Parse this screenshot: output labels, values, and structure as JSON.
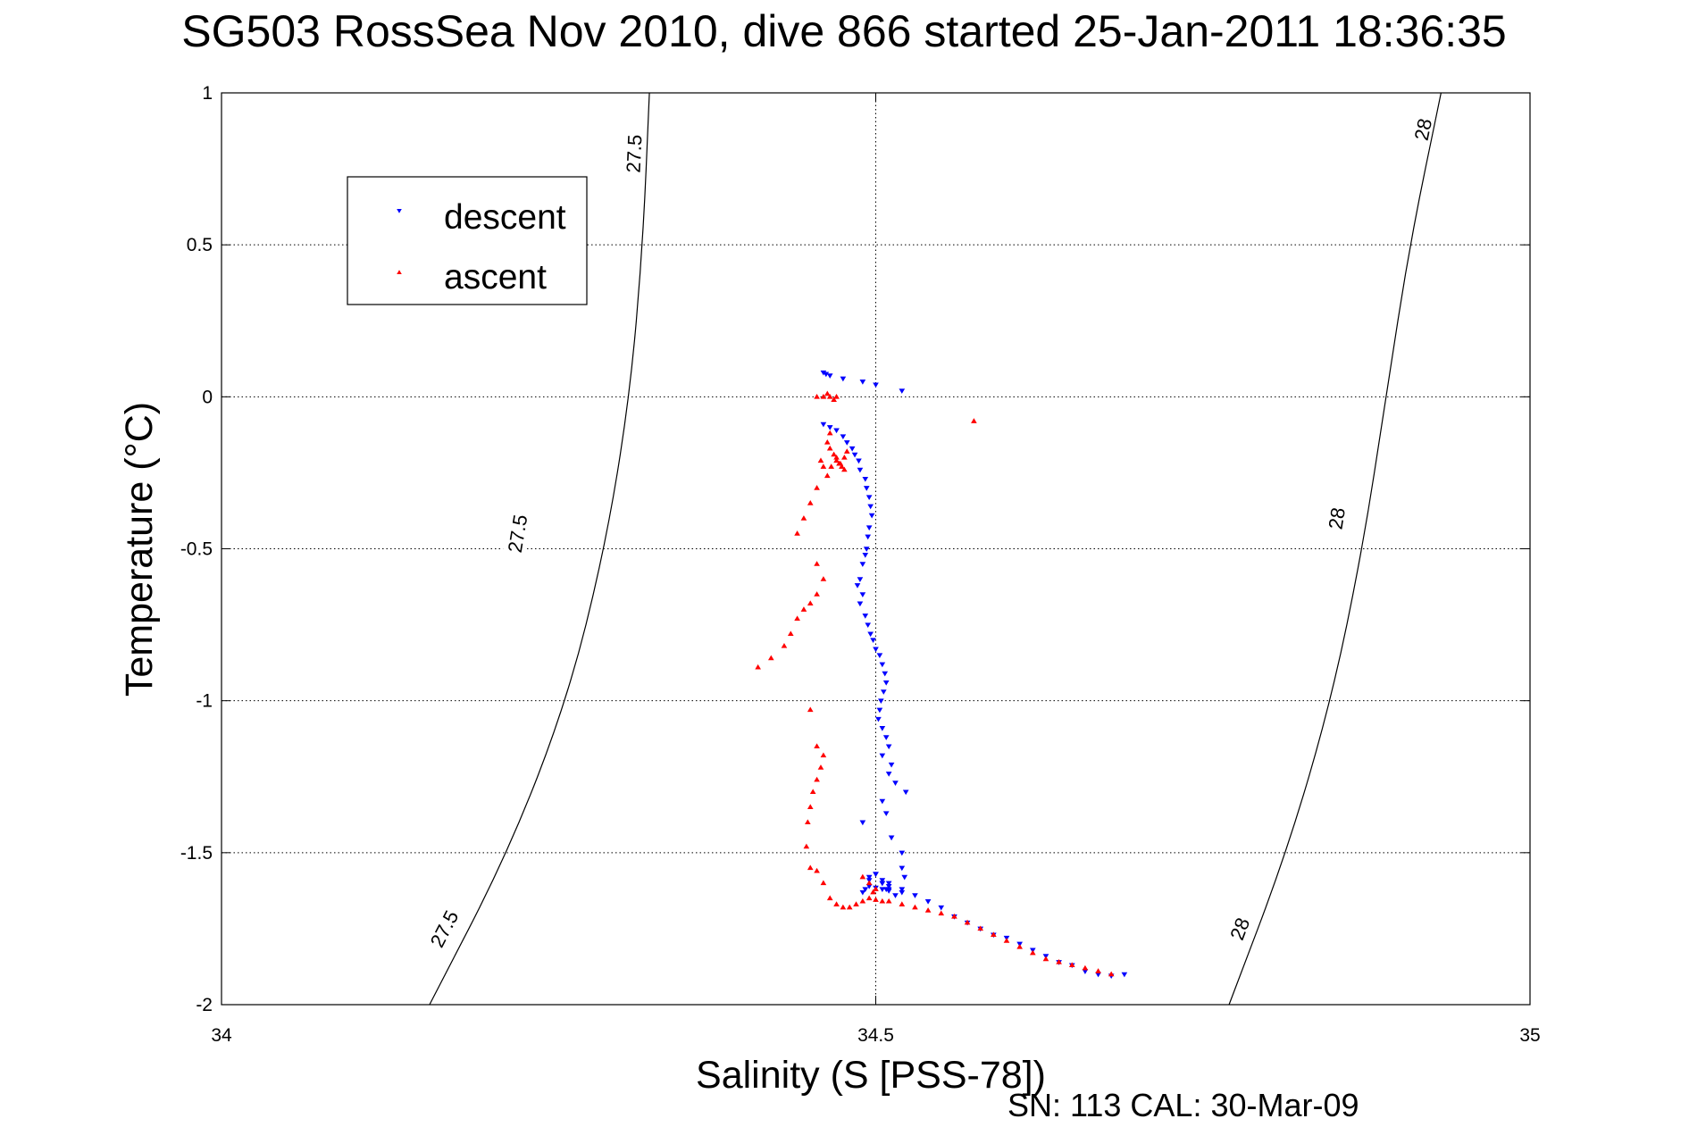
{
  "chart_data": {
    "type": "scatter",
    "title": "SG503 RossSea Nov 2010, dive 866 started 25-Jan-2011 18:36:35",
    "xlabel": "Salinity (S [PSS-78])",
    "ylabel": "Temperature (°C)",
    "xlim": [
      34,
      35
    ],
    "ylim": [
      -2,
      1
    ],
    "xticks": [
      "34",
      "34.5",
      "35"
    ],
    "yticks": [
      "1",
      "0.5",
      "0",
      "-0.5",
      "-1",
      "-1.5",
      "-2"
    ],
    "grid": true,
    "legend_position": "top-left",
    "footer": "SN: 113  CAL: 30-Mar-09",
    "density_contours": [
      {
        "label": "27.5",
        "points": [
          [
            34.159,
            -2.0
          ],
          [
            34.219,
            -1.5
          ],
          [
            34.264,
            -1.0
          ],
          [
            34.293,
            -0.5
          ],
          [
            34.312,
            0.0
          ],
          [
            34.322,
            0.5
          ],
          [
            34.327,
            1.0
          ]
        ],
        "label_positions": [
          [
            34.17,
            -1.75
          ],
          [
            34.226,
            -0.45
          ],
          [
            34.315,
            0.8
          ]
        ]
      },
      {
        "label": "28",
        "points": [
          [
            34.77,
            -2.0
          ],
          [
            34.814,
            -1.5
          ],
          [
            34.848,
            -1.0
          ],
          [
            34.872,
            -0.5
          ],
          [
            34.89,
            0.0
          ],
          [
            34.908,
            0.5
          ],
          [
            34.932,
            1.0
          ]
        ],
        "label_positions": [
          [
            34.778,
            -1.75
          ],
          [
            34.852,
            -0.4
          ],
          [
            34.918,
            0.88
          ]
        ]
      }
    ],
    "series": [
      {
        "name": "descent",
        "marker": "triangle-down",
        "color": "#0000ff",
        "x": [
          34.46,
          34.462,
          34.465,
          34.475,
          34.49,
          34.5,
          34.52,
          34.46,
          34.465,
          34.47,
          34.475,
          34.478,
          34.482,
          34.484,
          34.487,
          34.488,
          34.492,
          34.493,
          34.495,
          34.496,
          34.497,
          34.495,
          34.494,
          34.493,
          34.492,
          34.49,
          34.488,
          34.486,
          34.488,
          34.49,
          34.492,
          34.494,
          34.496,
          34.498,
          34.5,
          34.503,
          34.505,
          34.507,
          34.508,
          34.506,
          34.504,
          34.503,
          34.502,
          34.505,
          34.508,
          34.51,
          34.505,
          34.512,
          34.51,
          34.515,
          34.523,
          34.505,
          34.508,
          34.49,
          34.512,
          34.52,
          34.52,
          34.522,
          34.51,
          34.508,
          34.505,
          34.495,
          34.5,
          34.505,
          34.51,
          34.49,
          34.492,
          34.495,
          34.5,
          34.505,
          34.51,
          34.52,
          34.53,
          34.54,
          34.55,
          34.56,
          34.57,
          34.58,
          34.59,
          34.6,
          34.61,
          34.62,
          34.63,
          34.64,
          34.65,
          34.66,
          34.67,
          34.68,
          34.69,
          34.505,
          34.51,
          34.515,
          34.52,
          34.5,
          34.495
        ],
        "y": [
          0.08,
          0.075,
          0.07,
          0.06,
          0.05,
          0.04,
          0.02,
          -0.09,
          -0.1,
          -0.11,
          -0.13,
          -0.15,
          -0.17,
          -0.19,
          -0.21,
          -0.24,
          -0.27,
          -0.3,
          -0.33,
          -0.36,
          -0.39,
          -0.43,
          -0.46,
          -0.5,
          -0.52,
          -0.55,
          -0.6,
          -0.62,
          -0.68,
          -0.65,
          -0.72,
          -0.75,
          -0.78,
          -0.8,
          -0.83,
          -0.85,
          -0.88,
          -0.91,
          -0.94,
          -0.97,
          -1.0,
          -1.03,
          -1.06,
          -1.09,
          -1.12,
          -1.15,
          -1.18,
          -1.21,
          -1.24,
          -1.27,
          -1.3,
          -1.33,
          -1.37,
          -1.4,
          -1.45,
          -1.5,
          -1.55,
          -1.58,
          -1.6,
          -1.62,
          -1.59,
          -1.58,
          -1.57,
          -1.6,
          -1.61,
          -1.63,
          -1.62,
          -1.61,
          -1.615,
          -1.62,
          -1.625,
          -1.63,
          -1.64,
          -1.66,
          -1.68,
          -1.71,
          -1.73,
          -1.75,
          -1.77,
          -1.78,
          -1.8,
          -1.82,
          -1.84,
          -1.86,
          -1.87,
          -1.89,
          -1.9,
          -1.905,
          -1.9,
          -1.6,
          -1.62,
          -1.64,
          -1.62,
          -1.57,
          -1.59
        ]
      },
      {
        "name": "ascent",
        "marker": "triangle-up",
        "color": "#ff0000",
        "x": [
          34.455,
          34.46,
          34.463,
          34.465,
          34.47,
          34.468,
          34.465,
          34.463,
          34.465,
          34.468,
          34.47,
          34.472,
          34.474,
          34.476,
          34.478,
          34.476,
          34.473,
          34.47,
          34.466,
          34.463,
          34.46,
          34.458,
          34.455,
          34.45,
          34.445,
          34.44,
          34.455,
          34.46,
          34.455,
          34.45,
          34.445,
          34.44,
          34.435,
          34.43,
          34.42,
          34.41,
          34.45,
          34.455,
          34.46,
          34.458,
          34.455,
          34.452,
          34.45,
          34.448,
          34.447,
          34.45,
          34.455,
          34.46,
          34.465,
          34.47,
          34.475,
          34.48,
          34.485,
          34.49,
          34.495,
          34.5,
          34.505,
          34.51,
          34.52,
          34.53,
          34.54,
          34.55,
          34.56,
          34.57,
          34.58,
          34.59,
          34.6,
          34.61,
          34.62,
          34.63,
          34.64,
          34.65,
          34.66,
          34.67,
          34.68,
          34.49,
          34.495,
          34.5,
          34.498,
          34.575
        ],
        "y": [
          0.0,
          0.0,
          0.01,
          0.0,
          0.0,
          -0.01,
          -0.12,
          -0.15,
          -0.17,
          -0.19,
          -0.21,
          -0.22,
          -0.23,
          -0.2,
          -0.18,
          -0.24,
          -0.22,
          -0.2,
          -0.23,
          -0.26,
          -0.23,
          -0.21,
          -0.3,
          -0.35,
          -0.4,
          -0.45,
          -0.55,
          -0.6,
          -0.65,
          -0.68,
          -0.7,
          -0.73,
          -0.78,
          -0.82,
          -0.86,
          -0.89,
          -1.03,
          -1.15,
          -1.18,
          -1.22,
          -1.26,
          -1.3,
          -1.35,
          -1.4,
          -1.48,
          -1.55,
          -1.56,
          -1.6,
          -1.65,
          -1.67,
          -1.68,
          -1.68,
          -1.67,
          -1.66,
          -1.65,
          -1.655,
          -1.66,
          -1.66,
          -1.67,
          -1.68,
          -1.69,
          -1.7,
          -1.71,
          -1.73,
          -1.75,
          -1.77,
          -1.79,
          -1.81,
          -1.83,
          -1.85,
          -1.86,
          -1.87,
          -1.88,
          -1.89,
          -1.9,
          -1.58,
          -1.6,
          -1.62,
          -1.63,
          -0.08
        ]
      }
    ]
  }
}
